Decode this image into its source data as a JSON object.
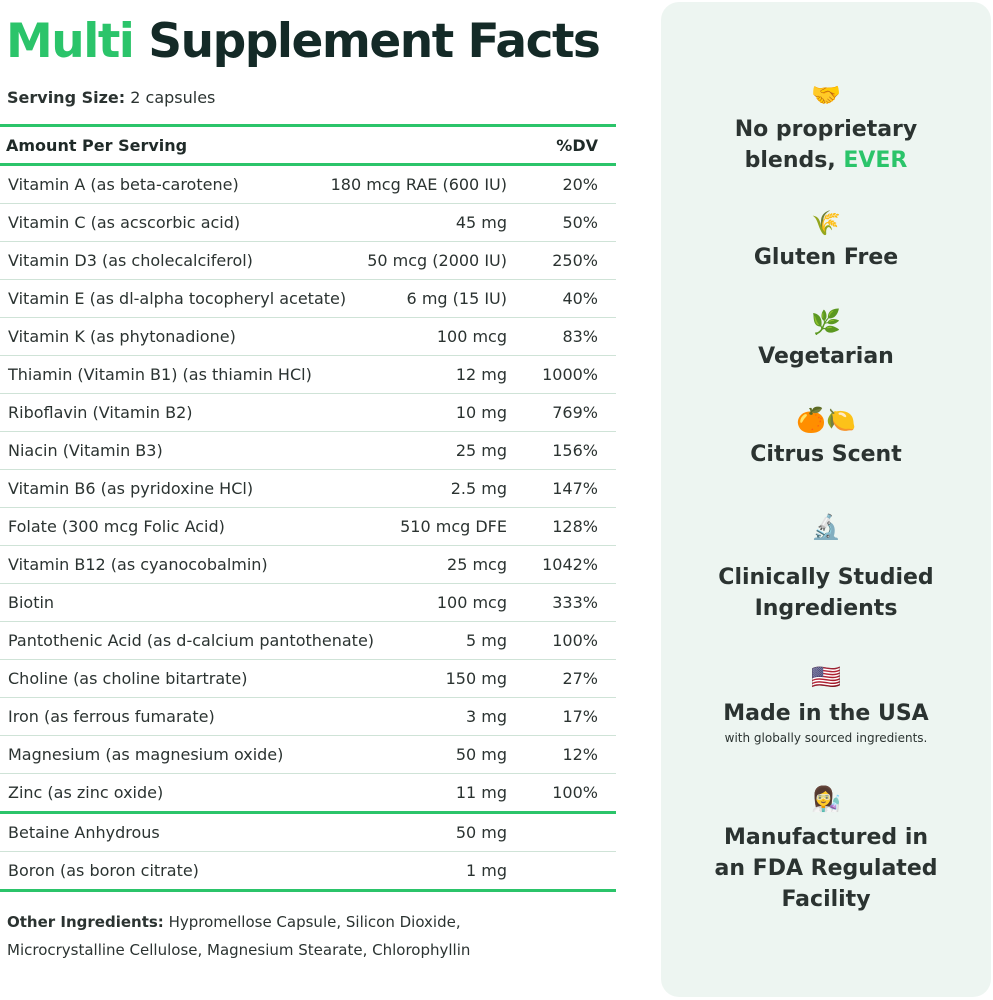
{
  "title": {
    "accent": "Multi",
    "rest": "Supplement Facts"
  },
  "serving": {
    "label": "Serving Size:",
    "value": "2 capsules"
  },
  "table": {
    "header_left": "Amount Per Serving",
    "header_right": "%DV",
    "rows": [
      {
        "name": "Vitamin A (as beta-carotene)",
        "amount": "180 mcg RAE (600 IU)",
        "dv": "20%"
      },
      {
        "name": "Vitamin C (as acscorbic acid)",
        "amount": "45 mg",
        "dv": "50%"
      },
      {
        "name": "Vitamin D3 (as cholecalciferol)",
        "amount": "50 mcg (2000 IU)",
        "dv": "250%"
      },
      {
        "name": "Vitamin E (as dl-alpha tocopheryl acetate)",
        "amount": "6 mg (15 IU)",
        "dv": "40%"
      },
      {
        "name": "Vitamin K (as phytonadione)",
        "amount": "100 mcg",
        "dv": "83%"
      },
      {
        "name": "Thiamin (Vitamin B1) (as thiamin HCl)",
        "amount": "12 mg",
        "dv": "1000%"
      },
      {
        "name": "Riboflavin (Vitamin B2)",
        "amount": "10 mg",
        "dv": "769%"
      },
      {
        "name": "Niacin (Vitamin B3)",
        "amount": "25 mg",
        "dv": "156%"
      },
      {
        "name": "Vitamin B6 (as pyridoxine HCl)",
        "amount": "2.5 mg",
        "dv": "147%"
      },
      {
        "name": "Folate (300 mcg Folic Acid)",
        "amount": "510 mcg DFE",
        "dv": "128%"
      },
      {
        "name": "Vitamin B12 (as cyanocobalmin)",
        "amount": "25 mcg",
        "dv": "1042%"
      },
      {
        "name": "Biotin",
        "amount": "100 mcg",
        "dv": "333%"
      },
      {
        "name": "Pantothenic Acid (as d-calcium pantothenate)",
        "amount": "5 mg",
        "dv": "100%"
      },
      {
        "name": "Choline (as choline bitartrate)",
        "amount": "150 mg",
        "dv": "27%"
      },
      {
        "name": "Iron (as ferrous fumarate)",
        "amount": "3 mg",
        "dv": "17%"
      },
      {
        "name": "Magnesium (as magnesium oxide)",
        "amount": "50 mg",
        "dv": "12%"
      },
      {
        "name": "Zinc (as zinc oxide)",
        "amount": "11 mg",
        "dv": "100%"
      }
    ],
    "extra_rows": [
      {
        "name": "Betaine Anhydrous",
        "amount": "50 mg"
      },
      {
        "name": "Boron (as boron citrate)",
        "amount": "1 mg"
      }
    ]
  },
  "other_ingredients": {
    "label": "Other Ingredients:",
    "line1": "Hypromellose Capsule, Silicon Dioxide,",
    "line2": "Microcrystalline Cellulose, Magnesium Stearate, Chlorophyllin"
  },
  "features": {
    "proprietary": {
      "icon": "handshake-icon",
      "glyph": "🤝",
      "line1": "No proprietary",
      "line2_prefix": "blends, ",
      "line2_accent": "EVER"
    },
    "gluten": {
      "icon": "wheat-icon",
      "glyph": "🌾",
      "text": "Gluten Free"
    },
    "vegetarian": {
      "icon": "herb-icon",
      "glyph": "🌿",
      "text": "Vegetarian"
    },
    "citrus": {
      "icon": "citrus-icon",
      "glyph": "🍊🍋",
      "text": "Citrus Scent"
    },
    "clinical": {
      "icon": "microscope-icon",
      "glyph": "🔬",
      "line1": "Clinically Studied",
      "line2": "Ingredients"
    },
    "usa": {
      "icon": "us-flag-icon",
      "glyph": "🇺🇸",
      "text": "Made in the USA",
      "sub": "with globally sourced ingredients."
    },
    "fda": {
      "icon": "scientist-icon",
      "glyph": "👩‍🔬",
      "line1": "Manufactured in",
      "line2": "an FDA Regulated",
      "line3": "Facility"
    }
  },
  "colors": {
    "accent": "#2bc46a",
    "title": "#142a27",
    "panel": "#edf5f1"
  }
}
